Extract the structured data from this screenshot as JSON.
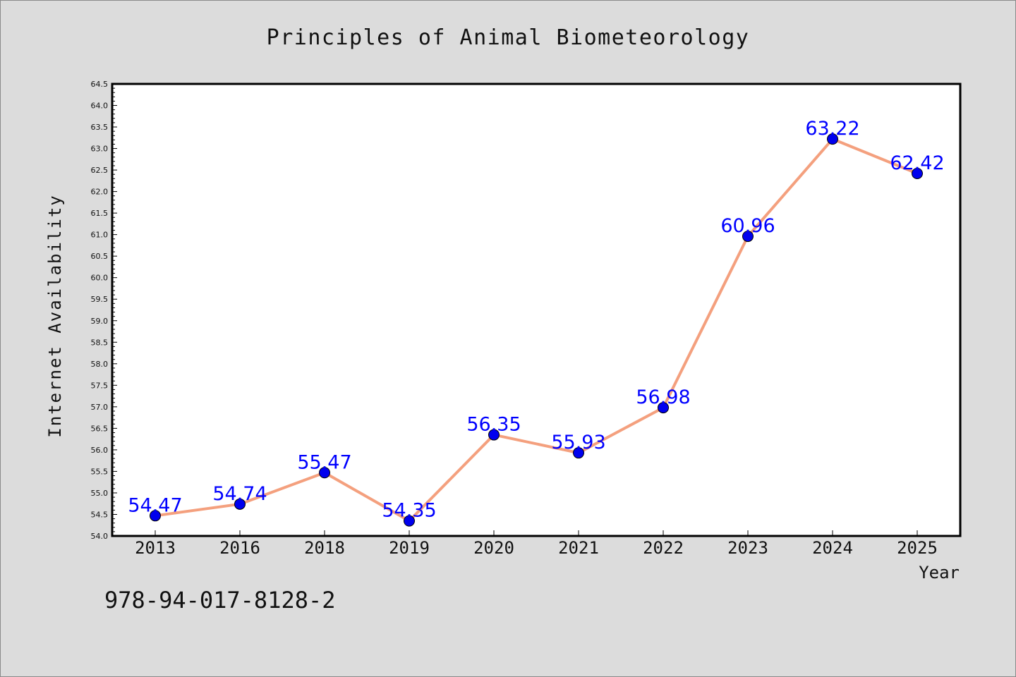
{
  "chart_data": {
    "type": "line",
    "title": "Principles of Animal Biometeorology",
    "xlabel": "Year",
    "ylabel": "Internet Availability",
    "categories": [
      "2013",
      "2016",
      "2018",
      "2019",
      "2020",
      "2021",
      "2022",
      "2023",
      "2024",
      "2025"
    ],
    "series": [
      {
        "values": [
          54.47,
          54.74,
          55.47,
          54.35,
          56.35,
          55.93,
          56.98,
          60.96,
          63.22,
          62.42
        ],
        "data_labels": [
          "54.47",
          "54.74",
          "55.47",
          "54.35",
          "56.35",
          "55.93",
          "56.98",
          "60.96",
          "63.22",
          "62.42"
        ]
      }
    ],
    "ylim": [
      54.0,
      64.5
    ],
    "y_ticks": [
      "54.0",
      "54.5",
      "55.0",
      "55.5",
      "56.0",
      "56.5",
      "57.0",
      "57.5",
      "58.0",
      "58.5",
      "59.0",
      "59.5",
      "60.0",
      "60.5",
      "61.0",
      "61.5",
      "62.0",
      "62.5",
      "63.0",
      "63.5",
      "64.0",
      "64.5"
    ],
    "grid": false,
    "colors": {
      "line": "#f4a07e",
      "marker": "#0000ee",
      "data_label": "#0000ff",
      "plot_background": "#ffffff",
      "page_background": "#dcdcdc"
    }
  },
  "footer": {
    "isbn": "978-94-017-8128-2"
  }
}
